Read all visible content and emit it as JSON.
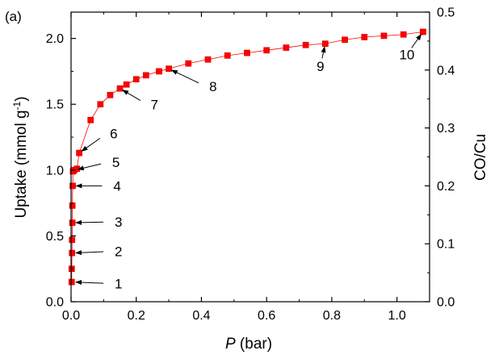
{
  "colors": {
    "series": "#ff0000",
    "marker_edge": "#cc0000",
    "axis": "#000000",
    "background": "#ffffff"
  },
  "chart_data": {
    "type": "scatter",
    "panel_label": "(a)",
    "xlabel_italic": "P",
    "xlabel_rest": " (bar)",
    "ylabel_left_main": "Uptake (mmol g",
    "ylabel_left_sup": "-1",
    "ylabel_left_close": ")",
    "ylabel_right": "CO/Cu",
    "xlim": [
      0.0,
      1.1
    ],
    "ylim": [
      0.0,
      2.2
    ],
    "ylim_right": [
      0.0,
      0.5
    ],
    "xticks": [
      0.0,
      0.2,
      0.4,
      0.6,
      0.8,
      1.0
    ],
    "xtick_labels": [
      "0.0",
      "0.2",
      "0.4",
      "0.6",
      "0.8",
      "1.0"
    ],
    "yticks": [
      0.0,
      0.5,
      1.0,
      1.5,
      2.0
    ],
    "ytick_labels": [
      "0.0",
      "0.5",
      "1.0",
      "1.5",
      "2.0"
    ],
    "yticks_right": [
      0.0,
      0.1,
      0.2,
      0.3,
      0.4,
      0.5
    ],
    "ytick_right_labels": [
      "0.0",
      "0.1",
      "0.2",
      "0.3",
      "0.4",
      "0.5"
    ],
    "grid": false,
    "series": [
      {
        "marker": "square",
        "line": "thin",
        "color": "#ff0000",
        "x": [
          0.002,
          0.002,
          0.003,
          0.003,
          0.004,
          0.004,
          0.005,
          0.006,
          0.01,
          0.018,
          0.025,
          0.06,
          0.09,
          0.12,
          0.15,
          0.17,
          0.2,
          0.23,
          0.27,
          0.3,
          0.36,
          0.42,
          0.48,
          0.54,
          0.6,
          0.66,
          0.72,
          0.78,
          0.84,
          0.9,
          0.96,
          1.02,
          1.08
        ],
        "y": [
          0.15,
          0.25,
          0.37,
          0.47,
          0.6,
          0.73,
          0.88,
          0.99,
          1.0,
          1.01,
          1.13,
          1.38,
          1.5,
          1.57,
          1.62,
          1.65,
          1.69,
          1.72,
          1.75,
          1.77,
          1.81,
          1.84,
          1.87,
          1.89,
          1.91,
          1.93,
          1.95,
          1.96,
          1.99,
          2.01,
          2.02,
          2.03,
          2.05
        ]
      }
    ],
    "annotations": [
      {
        "label": "1",
        "target": [
          0.005,
          0.15
        ]
      },
      {
        "label": "2",
        "target": [
          0.005,
          0.37
        ]
      },
      {
        "label": "3",
        "target": [
          0.005,
          0.6
        ]
      },
      {
        "label": "4",
        "target": [
          0.006,
          0.88
        ]
      },
      {
        "label": "5",
        "target": [
          0.012,
          1.0
        ]
      },
      {
        "label": "6",
        "target": [
          0.025,
          1.13
        ]
      },
      {
        "label": "7",
        "target": [
          0.15,
          1.62
        ]
      },
      {
        "label": "8",
        "target": [
          0.3,
          1.77
        ]
      },
      {
        "label": "9",
        "target": [
          0.78,
          1.96
        ]
      },
      {
        "label": "10",
        "target": [
          1.08,
          2.05
        ]
      }
    ]
  }
}
